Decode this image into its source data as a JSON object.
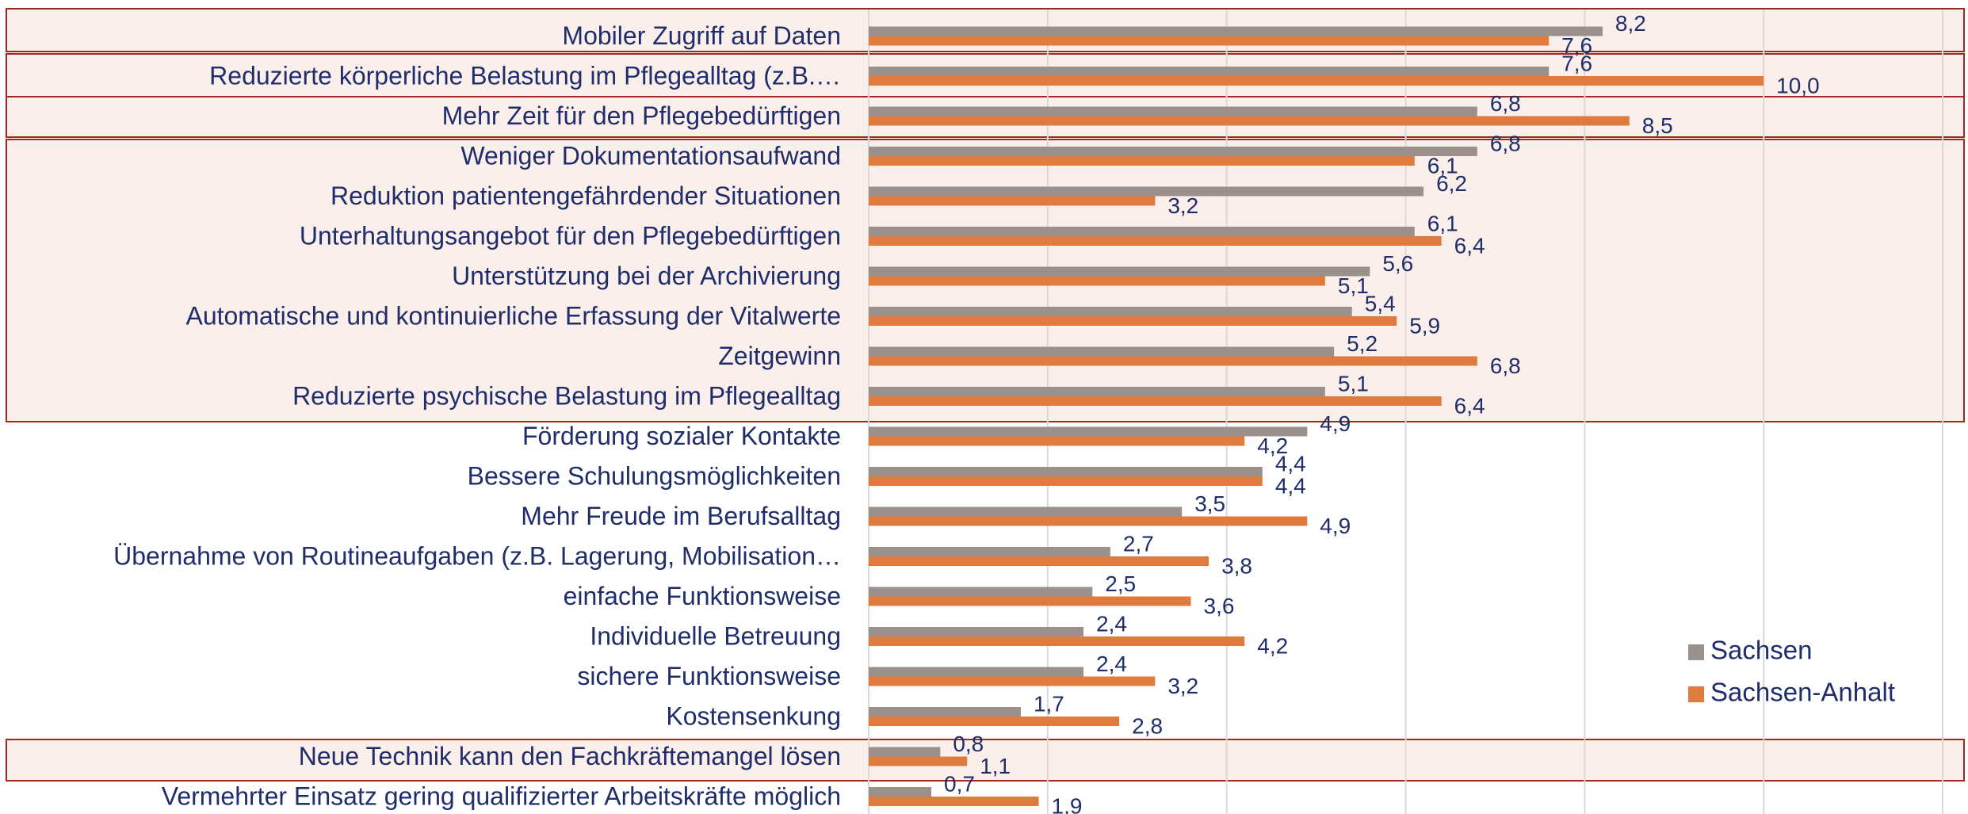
{
  "chart_data": {
    "type": "barh",
    "categories": [
      "Mobiler Zugriff auf Daten",
      "Reduzierte körperliche Belastung im Pflegealltag (z.B.…",
      "Mehr Zeit für den Pflegebedürftigen",
      "Weniger Dokumentationsaufwand",
      "Reduktion patientengefährdender Situationen",
      "Unterhaltungsangebot für den Pflegebedürftigen",
      "Unterstützung bei der Archivierung",
      "Automatische und kontinuierliche Erfassung der Vitalwerte",
      "Zeitgewinn",
      "Reduzierte psychische Belastung im Pflegealltag",
      "Förderung sozialer Kontakte",
      "Bessere Schulungsmöglichkeiten",
      "Mehr Freude im Berufsalltag",
      "Übernahme von Routineaufgaben (z.B. Lagerung, Mobilisation…",
      "einfache Funktionsweise",
      "Individuelle Betreuung",
      "sichere Funktionsweise",
      "Kostensenkung",
      "Neue Technik kann den Fachkräftemangel lösen",
      "Vermehrter Einsatz gering qualifizierter Arbeitskräfte möglich"
    ],
    "series": [
      {
        "name": "Sachsen",
        "color": "#9a908c",
        "values": [
          8.2,
          7.6,
          6.8,
          6.8,
          6.2,
          6.1,
          5.6,
          5.4,
          5.2,
          5.1,
          4.9,
          4.4,
          3.5,
          2.7,
          2.5,
          2.4,
          2.4,
          1.7,
          0.8,
          0.7
        ],
        "value_labels": [
          "8,2",
          "7,6",
          "6,8",
          "6,8",
          "6,2",
          "6,1",
          "5,6",
          "5,4",
          "5,2",
          "5,1",
          "4,9",
          "4,4",
          "3,5",
          "2,7",
          "2,5",
          "2,4",
          "2,4",
          "1,7",
          "0,8",
          "0,7"
        ]
      },
      {
        "name": "Sachsen-Anhalt",
        "color": "#e07b3f",
        "values": [
          7.6,
          10.0,
          8.5,
          6.1,
          3.2,
          6.4,
          5.1,
          5.9,
          6.8,
          6.4,
          4.2,
          4.4,
          4.9,
          3.8,
          3.6,
          4.2,
          3.2,
          2.8,
          1.1,
          1.9
        ],
        "value_labels": [
          "7,6",
          "10,0",
          "8,5",
          "6,1",
          "3,2",
          "6,4",
          "5,1",
          "5,9",
          "6,8",
          "6,4",
          "4,2",
          "4,4",
          "4,9",
          "3,8",
          "3,6",
          "4,2",
          "3,2",
          "2,8",
          "1,1",
          "1,9"
        ]
      }
    ],
    "xlim": [
      0,
      12
    ],
    "xticks": [
      0,
      2,
      4,
      6,
      8,
      10,
      12
    ],
    "grid": true,
    "legend": "lower right"
  }
}
